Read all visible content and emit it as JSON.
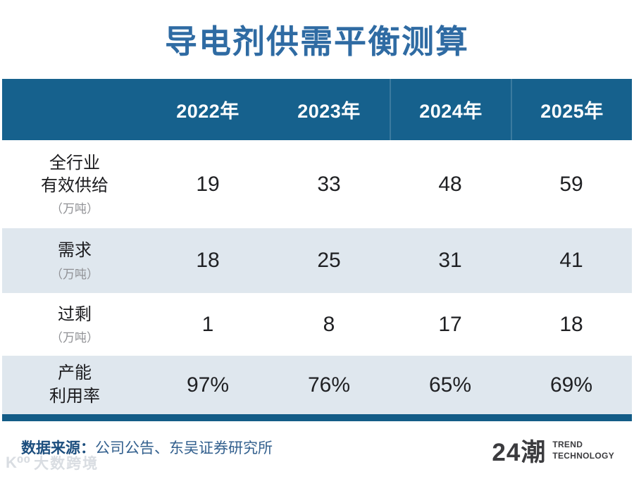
{
  "title": "导电剂供需平衡测算",
  "table": {
    "columns": [
      "2022年",
      "2023年",
      "2024年",
      "2025年"
    ],
    "rows": [
      {
        "label_line1": "全行业",
        "label_line2": "有效供给",
        "unit": "（万吨）",
        "values": [
          "19",
          "33",
          "48",
          "59"
        ]
      },
      {
        "label_line1": "需求",
        "unit": "（万吨）",
        "values": [
          "18",
          "25",
          "31",
          "41"
        ]
      },
      {
        "label_line1": "过剩",
        "unit": "（万吨）",
        "values": [
          "1",
          "8",
          "17",
          "18"
        ]
      },
      {
        "label_line1": "产能",
        "label_line2": "利用率",
        "values": [
          "97%",
          "76%",
          "65%",
          "69%"
        ]
      }
    ]
  },
  "footer": {
    "source_label": "数据来源：",
    "source_text": "公司公告、东吴证券研究所"
  },
  "brand": {
    "name": "24潮",
    "sub_line1": "TREND",
    "sub_line2": "TECHNOLOGY"
  },
  "watermark": {
    "icon": "K⁰⁰",
    "text": "大数跨境"
  },
  "colors": {
    "header_bg": "#16618d",
    "bottom_bar": "#135c87",
    "alt_row_bg": "#dfe7ee",
    "title_blue": "#2f6ba3",
    "source_navy": "#1c4e7e",
    "brand_gray": "#3b3b3e"
  },
  "chart_data": {
    "type": "table",
    "title": "导电剂供需平衡测算",
    "categories": [
      "2022年",
      "2023年",
      "2024年",
      "2025年"
    ],
    "series": [
      {
        "name": "全行业有效供给（万吨）",
        "values": [
          19,
          33,
          48,
          59
        ]
      },
      {
        "name": "需求（万吨）",
        "values": [
          18,
          25,
          31,
          41
        ]
      },
      {
        "name": "过剩（万吨）",
        "values": [
          1,
          8,
          17,
          18
        ]
      },
      {
        "name": "产能利用率",
        "values": [
          "97%",
          "76%",
          "65%",
          "69%"
        ]
      }
    ],
    "source": "公司公告、东吴证券研究所",
    "layout": "header row of years on dark blue band; alternating white and light-blue rows; dark blue bar closes the table"
  }
}
